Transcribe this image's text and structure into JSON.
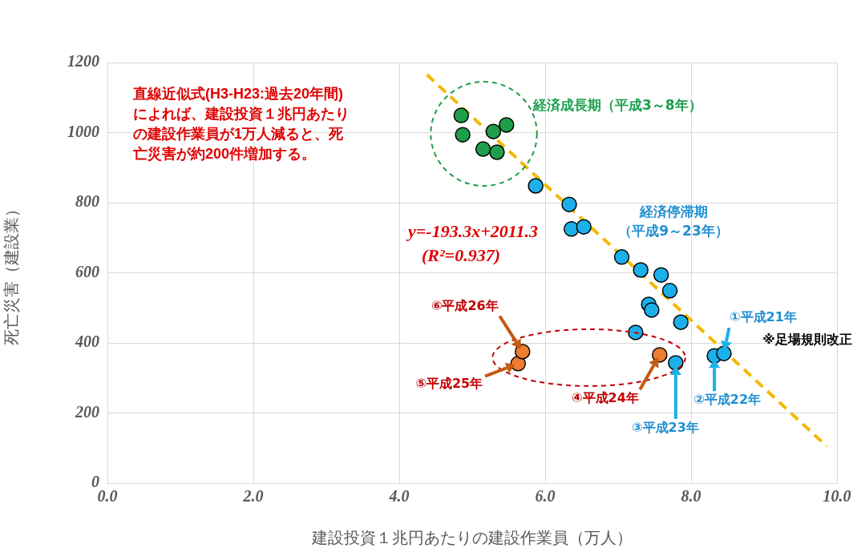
{
  "chart_data": {
    "type": "scatter",
    "xlabel": "建設投資１兆円あたりの建設作業員（万人）",
    "ylabel": "死亡災害（建設業）",
    "xlim": [
      0,
      10
    ],
    "xticks": [
      {
        "value": 0,
        "label": "0.0"
      },
      {
        "value": 2,
        "label": "2.0"
      },
      {
        "value": 4,
        "label": "4.0"
      },
      {
        "value": 6,
        "label": "6.0"
      },
      {
        "value": 8,
        "label": "8.0"
      },
      {
        "value": 10,
        "label": "10.0"
      }
    ],
    "ylim": [
      0,
      1200
    ],
    "yticks": [
      0,
      200,
      400,
      600,
      800,
      1000,
      1200
    ],
    "grid": true,
    "legend": false,
    "marker": "circle",
    "series": [
      {
        "name": "経済成長期（平成3～8年）",
        "color": "#1e9e48",
        "x": [
          4.85,
          4.87,
          5.15,
          5.29,
          5.34,
          5.47
        ],
        "values": [
          1049,
          994,
          953,
          1003,
          944,
          1022
        ]
      },
      {
        "name": "経済停滞期（平成9～23年）",
        "color": "#1cb0ea",
        "x": [
          5.87,
          6.33,
          6.36,
          6.53,
          7.05,
          7.31,
          7.59,
          7.71,
          7.42,
          7.46,
          7.86,
          7.24,
          7.79,
          8.32,
          8.45
        ],
        "values": [
          848,
          795,
          725,
          731,
          645,
          608,
          594,
          549,
          510,
          494,
          459,
          430,
          343,
          363,
          370
        ]
      },
      {
        "color": "#ed7d31",
        "x": [
          7.57,
          5.63,
          5.69
        ],
        "values": [
          366,
          341,
          375
        ]
      },
      {
        "type": "line",
        "color": "#f5b800",
        "line_style": "dashed",
        "marker": "none",
        "x": [
          4.38,
          9.86
        ],
        "values": [
          1165,
          105
        ]
      }
    ],
    "annotations": [
      "直線近似式(H3-H23:過去20年間)によれば、建設投資１兆円あたりの建設作業員が1万人減ると、死亡災害が約200件増加する。",
      "y=-193.3x+2011.3",
      "(R²=0.937)",
      {
        "text": "①平成21年",
        "x": 8.45,
        "y": 370
      },
      "※足場規則改正",
      {
        "text": "②平成22年",
        "x": 8.32,
        "y": 363
      },
      "③平成23年",
      "④平成24年",
      {
        "text": "⑤平成25年",
        "x": 5.63,
        "y": 341
      },
      "⑥平成26年"
    ]
  }
}
